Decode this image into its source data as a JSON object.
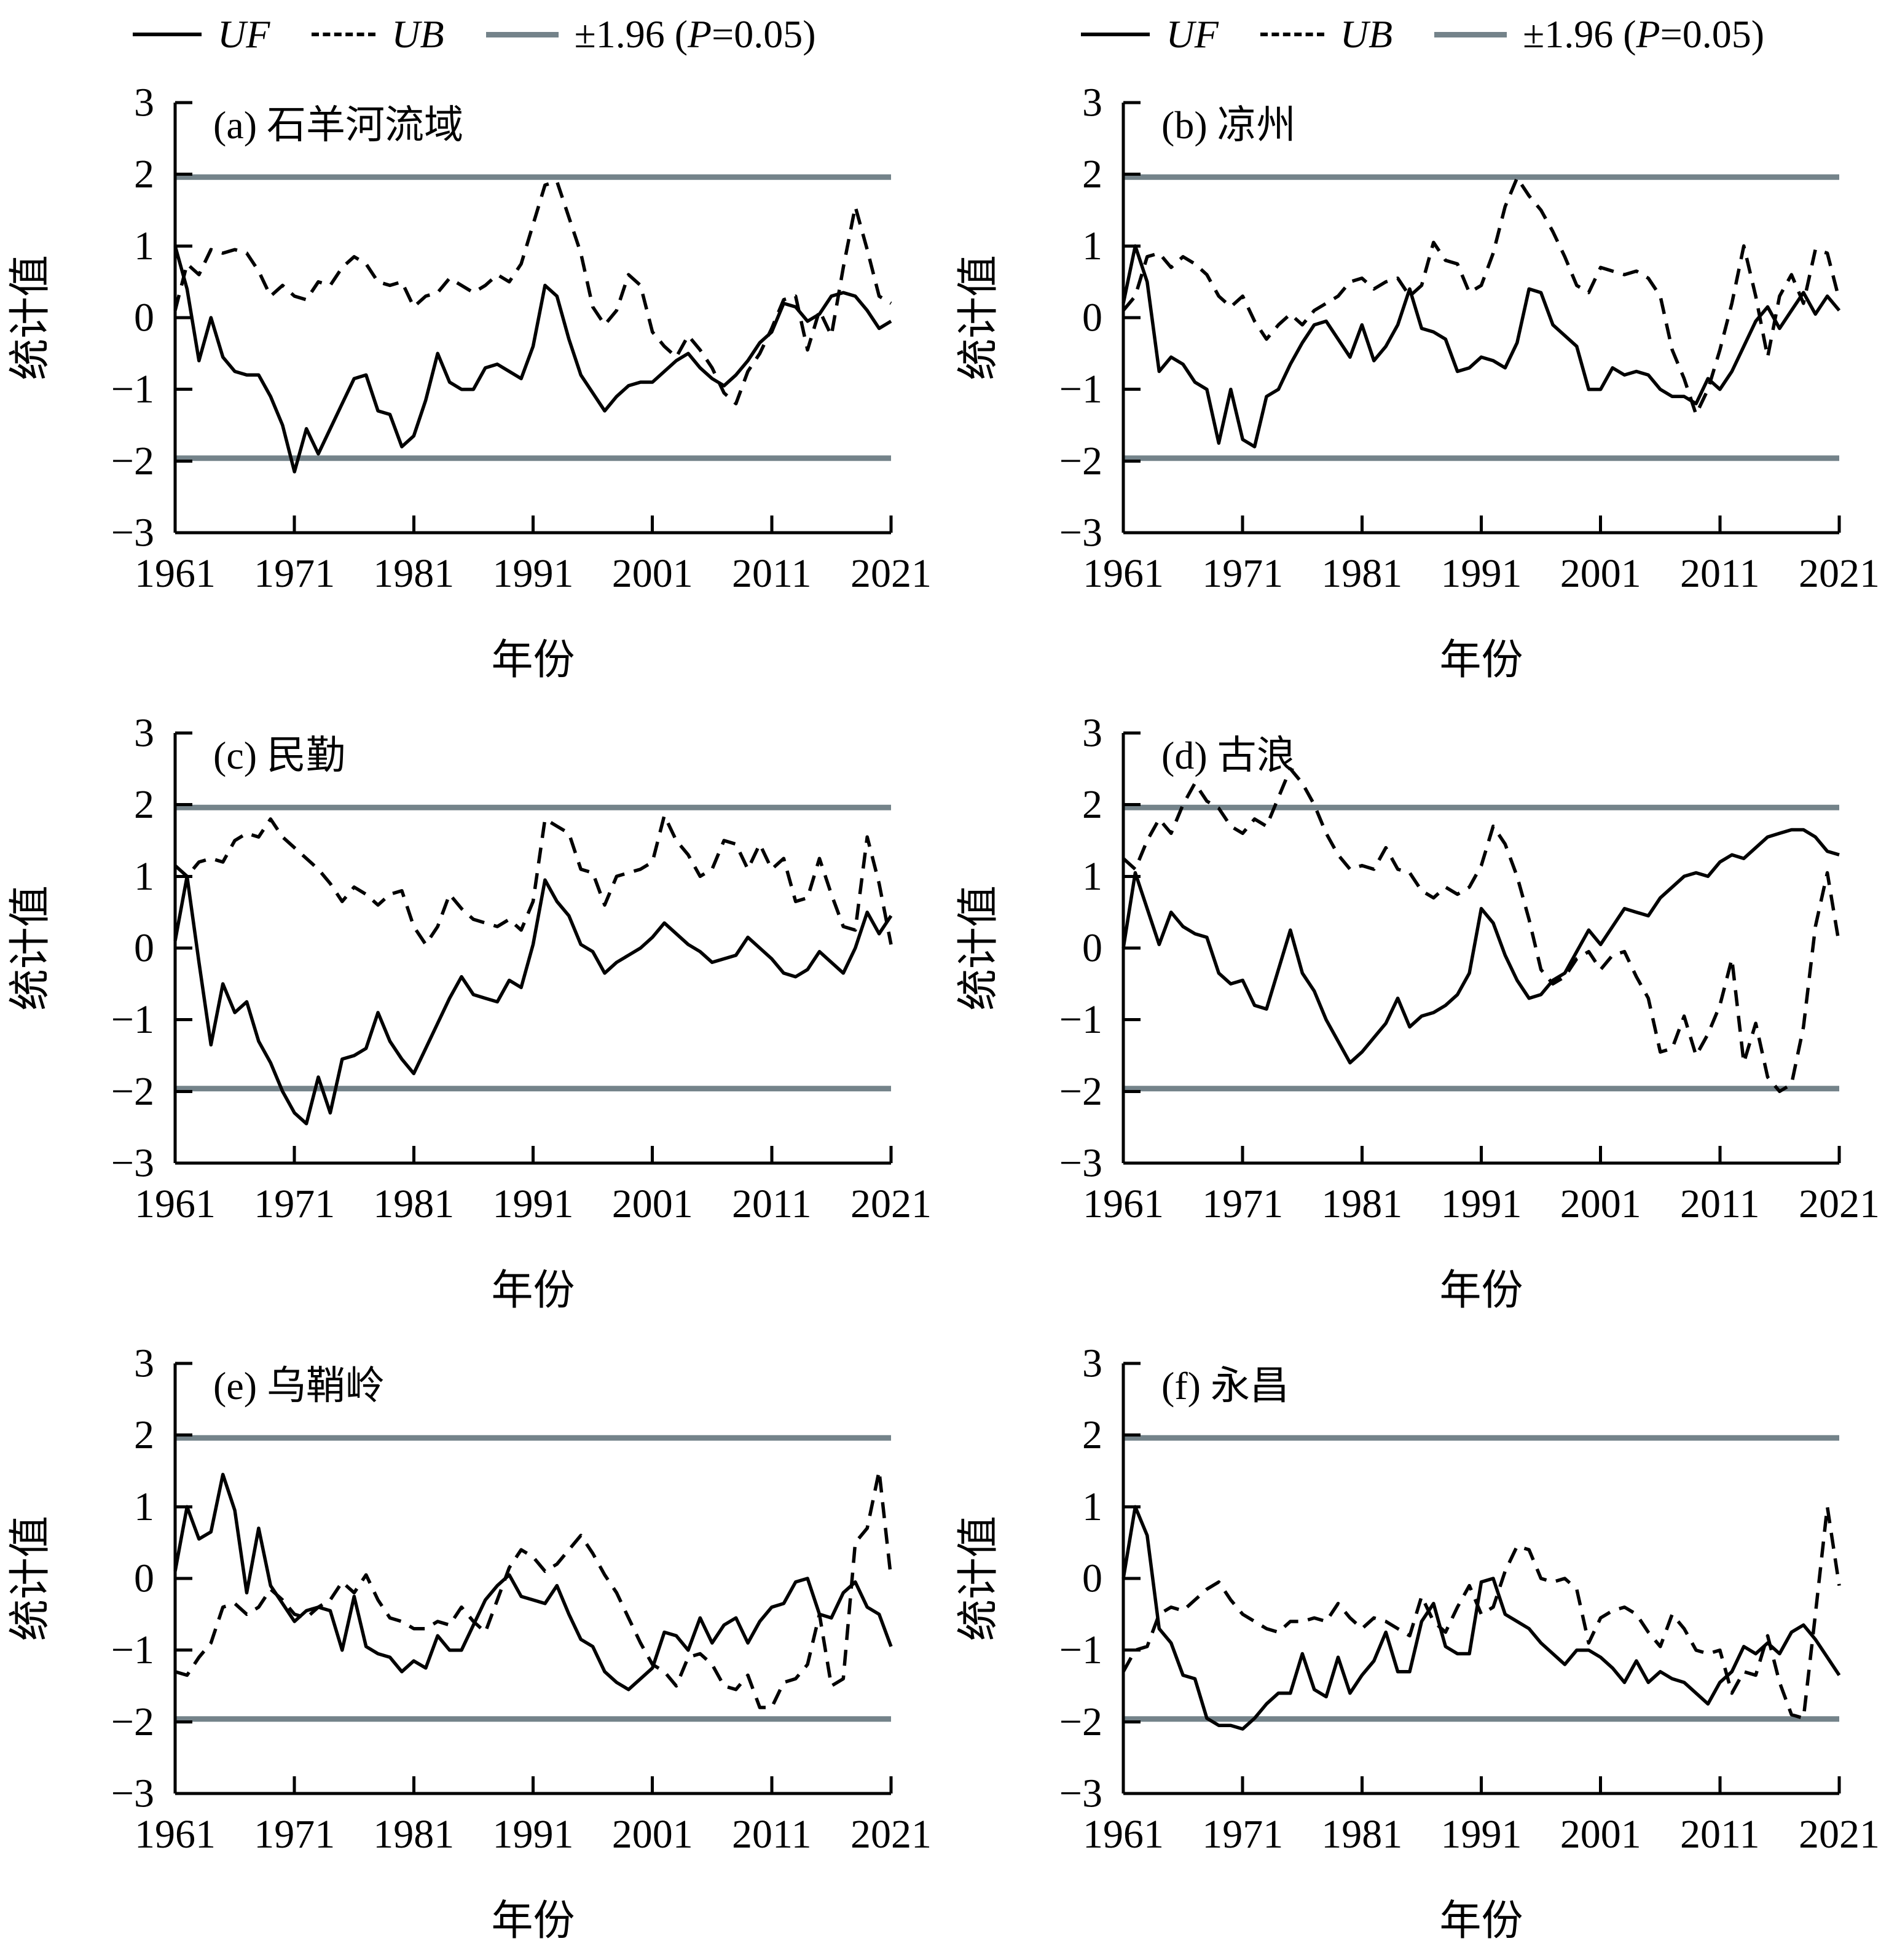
{
  "legend": {
    "uf_label": "UF",
    "ub_label": "UB",
    "threshold_prefix": "±1.96 (",
    "threshold_p": "P",
    "threshold_suffix": "=0.05)"
  },
  "axes": {
    "y_label": "统计值",
    "x_label": "年份",
    "y_ticks": [
      3,
      2,
      1,
      0,
      -1,
      -2,
      -3
    ],
    "x_ticks": [
      1961,
      1971,
      1981,
      1991,
      2001,
      2011,
      2021
    ],
    "ylim": [
      -3,
      3
    ],
    "xlim": [
      1961,
      2021
    ],
    "threshold_value": 1.96,
    "grid": false,
    "legend_position": "top"
  },
  "colors": {
    "uf": "#000000",
    "ub": "#000000",
    "threshold": "#74838a"
  },
  "chart_data": [
    {
      "id": "a",
      "type": "line",
      "title": "(a) 石羊河流域",
      "x_start": 1961,
      "x_end": 2021,
      "series": [
        {
          "name": "UF",
          "style": "solid",
          "values": [
            1.0,
            0.4,
            -0.6,
            0.0,
            -0.55,
            -0.75,
            -0.8,
            -0.8,
            -1.1,
            -1.5,
            -2.15,
            -1.55,
            -1.9,
            -1.55,
            -1.2,
            -0.85,
            -0.8,
            -1.3,
            -1.35,
            -1.8,
            -1.65,
            -1.15,
            -0.5,
            -0.9,
            -1.0,
            -1.0,
            -0.7,
            -0.65,
            -0.75,
            -0.85,
            -0.4,
            0.45,
            0.3,
            -0.3,
            -0.8,
            -1.05,
            -1.3,
            -1.1,
            -0.95,
            -0.9,
            -0.9,
            -0.75,
            -0.6,
            -0.5,
            -0.7,
            -0.85,
            -0.95,
            -0.8,
            -0.6,
            -0.35,
            -0.2,
            0.2,
            0.15,
            -0.05,
            0.05,
            0.3,
            0.35,
            0.3,
            0.1,
            -0.15,
            -0.05
          ]
        },
        {
          "name": "UB",
          "style": "dashed",
          "values": [
            0.1,
            0.75,
            0.6,
            0.95,
            0.9,
            0.95,
            0.9,
            0.65,
            0.3,
            0.45,
            0.3,
            0.25,
            0.5,
            0.45,
            0.7,
            0.85,
            0.75,
            0.5,
            0.45,
            0.5,
            0.15,
            0.3,
            0.35,
            0.55,
            0.45,
            0.35,
            0.45,
            0.6,
            0.5,
            0.75,
            1.3,
            1.85,
            1.9,
            1.4,
            0.9,
            0.15,
            -0.1,
            0.1,
            0.6,
            0.45,
            -0.2,
            -0.4,
            -0.55,
            -0.25,
            -0.45,
            -0.7,
            -1.05,
            -1.2,
            -0.75,
            -0.5,
            -0.15,
            0.25,
            0.3,
            -0.45,
            0.1,
            -0.25,
            0.7,
            1.55,
            0.95,
            0.3,
            0.2
          ]
        }
      ]
    },
    {
      "id": "b",
      "type": "line",
      "title": "(b) 凉州",
      "x_start": 1961,
      "x_end": 2021,
      "series": [
        {
          "name": "UF",
          "style": "solid",
          "values": [
            0.2,
            1.0,
            0.5,
            -0.75,
            -0.55,
            -0.65,
            -0.9,
            -1.0,
            -1.75,
            -1.0,
            -1.7,
            -1.8,
            -1.1,
            -1.0,
            -0.65,
            -0.35,
            -0.1,
            -0.05,
            -0.3,
            -0.55,
            -0.1,
            -0.6,
            -0.4,
            -0.1,
            0.4,
            -0.15,
            -0.2,
            -0.3,
            -0.75,
            -0.7,
            -0.55,
            -0.6,
            -0.7,
            -0.35,
            0.4,
            0.35,
            -0.1,
            -0.25,
            -0.4,
            -1.0,
            -1.0,
            -0.7,
            -0.8,
            -0.75,
            -0.8,
            -1.0,
            -1.1,
            -1.1,
            -1.2,
            -0.85,
            -1.0,
            -0.75,
            -0.4,
            -0.05,
            0.15,
            -0.15,
            0.1,
            0.35,
            0.05,
            0.3,
            0.1
          ]
        },
        {
          "name": "UB",
          "style": "dashed",
          "values": [
            0.1,
            0.3,
            0.85,
            0.9,
            0.7,
            0.85,
            0.75,
            0.6,
            0.3,
            0.15,
            0.3,
            -0.05,
            -0.3,
            -0.1,
            0.05,
            -0.1,
            0.1,
            0.2,
            0.3,
            0.5,
            0.55,
            0.4,
            0.5,
            0.55,
            0.3,
            0.45,
            1.05,
            0.8,
            0.75,
            0.35,
            0.45,
            0.9,
            1.55,
            1.95,
            1.7,
            1.5,
            1.2,
            0.85,
            0.45,
            0.35,
            0.7,
            0.65,
            0.6,
            0.65,
            0.55,
            0.3,
            -0.45,
            -0.85,
            -1.35,
            -1.0,
            -0.45,
            0.2,
            1.0,
            0.3,
            -0.55,
            0.3,
            0.6,
            0.2,
            0.95,
            0.9,
            0.25
          ]
        }
      ]
    },
    {
      "id": "c",
      "type": "line",
      "title": "(c) 民勤",
      "x_start": 1961,
      "x_end": 2021,
      "series": [
        {
          "name": "UF",
          "style": "solid",
          "values": [
            0.1,
            1.0,
            -0.2,
            -1.35,
            -0.5,
            -0.9,
            -0.75,
            -1.3,
            -1.6,
            -2.0,
            -2.3,
            -2.45,
            -1.8,
            -2.3,
            -1.55,
            -1.5,
            -1.4,
            -0.9,
            -1.3,
            -1.55,
            -1.75,
            -1.4,
            -1.05,
            -0.7,
            -0.4,
            -0.65,
            -0.7,
            -0.75,
            -0.45,
            -0.55,
            0.05,
            0.95,
            0.65,
            0.45,
            0.05,
            -0.05,
            -0.35,
            -0.2,
            -0.1,
            0.0,
            0.15,
            0.35,
            0.2,
            0.05,
            -0.05,
            -0.2,
            -0.15,
            -0.1,
            0.15,
            0.0,
            -0.15,
            -0.35,
            -0.4,
            -0.3,
            -0.05,
            -0.2,
            -0.35,
            0.0,
            0.5,
            0.2,
            0.45
          ]
        },
        {
          "name": "UB",
          "style": "dashed",
          "values": [
            1.15,
            1.0,
            1.2,
            1.25,
            1.2,
            1.5,
            1.6,
            1.55,
            1.8,
            1.55,
            1.4,
            1.25,
            1.1,
            0.9,
            0.65,
            0.85,
            0.75,
            0.6,
            0.75,
            0.8,
            0.3,
            0.05,
            0.3,
            0.75,
            0.55,
            0.4,
            0.35,
            0.3,
            0.4,
            0.25,
            0.65,
            1.8,
            1.7,
            1.6,
            1.1,
            1.05,
            0.6,
            1.0,
            1.05,
            1.1,
            1.2,
            1.85,
            1.5,
            1.3,
            1.0,
            1.1,
            1.5,
            1.45,
            1.1,
            1.45,
            1.1,
            1.25,
            0.65,
            0.7,
            1.25,
            0.75,
            0.3,
            0.25,
            1.55,
            0.9,
            0.05
          ]
        }
      ]
    },
    {
      "id": "d",
      "type": "line",
      "title": "(d) 古浪",
      "x_start": 1961,
      "x_end": 2021,
      "series": [
        {
          "name": "UF",
          "style": "solid",
          "values": [
            0.0,
            1.05,
            0.55,
            0.05,
            0.5,
            0.3,
            0.2,
            0.15,
            -0.35,
            -0.5,
            -0.45,
            -0.8,
            -0.85,
            -0.3,
            0.25,
            -0.35,
            -0.6,
            -1.0,
            -1.3,
            -1.6,
            -1.45,
            -1.25,
            -1.05,
            -0.7,
            -1.1,
            -0.95,
            -0.9,
            -0.8,
            -0.65,
            -0.35,
            0.55,
            0.35,
            -0.1,
            -0.45,
            -0.7,
            -0.65,
            -0.45,
            -0.35,
            -0.05,
            0.25,
            0.05,
            0.3,
            0.55,
            0.5,
            0.45,
            0.7,
            0.85,
            1.0,
            1.05,
            1.0,
            1.2,
            1.3,
            1.25,
            1.4,
            1.55,
            1.6,
            1.65,
            1.65,
            1.55,
            1.35,
            1.3
          ]
        },
        {
          "name": "UB",
          "style": "dashed",
          "values": [
            1.25,
            1.1,
            1.5,
            1.8,
            1.6,
            2.0,
            2.3,
            2.05,
            1.95,
            1.7,
            1.6,
            1.8,
            1.7,
            2.1,
            2.5,
            2.3,
            2.0,
            1.6,
            1.3,
            1.1,
            1.15,
            1.1,
            1.4,
            1.1,
            1.05,
            0.8,
            0.7,
            0.85,
            0.75,
            0.85,
            1.15,
            1.7,
            1.45,
            1.0,
            0.4,
            -0.3,
            -0.5,
            -0.4,
            -0.15,
            -0.05,
            -0.3,
            -0.1,
            -0.05,
            -0.4,
            -0.7,
            -1.45,
            -1.4,
            -0.95,
            -1.5,
            -1.2,
            -0.8,
            -0.15,
            -1.6,
            -1.05,
            -1.8,
            -2.0,
            -1.9,
            -1.1,
            0.3,
            1.05,
            0.05
          ]
        }
      ]
    },
    {
      "id": "e",
      "type": "line",
      "title": "(e) 乌鞘岭",
      "x_start": 1961,
      "x_end": 2021,
      "series": [
        {
          "name": "UF",
          "style": "solid",
          "values": [
            0.1,
            1.0,
            0.55,
            0.65,
            1.45,
            0.95,
            -0.2,
            0.7,
            -0.1,
            -0.35,
            -0.6,
            -0.45,
            -0.4,
            -0.45,
            -1.0,
            -0.25,
            -0.95,
            -1.05,
            -1.1,
            -1.3,
            -1.15,
            -1.25,
            -0.8,
            -1.0,
            -1.0,
            -0.65,
            -0.3,
            -0.1,
            0.05,
            -0.25,
            -0.3,
            -0.35,
            -0.1,
            -0.5,
            -0.85,
            -0.95,
            -1.3,
            -1.45,
            -1.55,
            -1.4,
            -1.25,
            -0.75,
            -0.8,
            -1.0,
            -0.55,
            -0.9,
            -0.65,
            -0.55,
            -0.9,
            -0.6,
            -0.4,
            -0.35,
            -0.05,
            0.0,
            -0.5,
            -0.55,
            -0.2,
            -0.05,
            -0.4,
            -0.5,
            -0.95
          ]
        },
        {
          "name": "UB",
          "style": "dashed",
          "values": [
            -1.3,
            -1.35,
            -1.1,
            -0.9,
            -0.4,
            -0.35,
            -0.5,
            -0.4,
            -0.15,
            -0.3,
            -0.5,
            -0.55,
            -0.4,
            -0.3,
            -0.05,
            -0.2,
            0.05,
            -0.3,
            -0.55,
            -0.6,
            -0.7,
            -0.7,
            -0.6,
            -0.65,
            -0.4,
            -0.6,
            -0.75,
            -0.3,
            0.15,
            0.4,
            0.3,
            0.1,
            0.2,
            0.4,
            0.6,
            0.35,
            0.05,
            -0.2,
            -0.55,
            -0.9,
            -1.2,
            -1.3,
            -1.5,
            -1.1,
            -1.05,
            -1.2,
            -1.5,
            -1.55,
            -1.35,
            -1.8,
            -1.8,
            -1.45,
            -1.4,
            -1.2,
            -0.5,
            -1.5,
            -1.4,
            0.5,
            0.7,
            1.5,
            0.0
          ]
        }
      ]
    },
    {
      "id": "f",
      "type": "line",
      "title": "(f) 永昌",
      "x_start": 1961,
      "x_end": 2021,
      "series": [
        {
          "name": "UF",
          "style": "solid",
          "values": [
            0.0,
            1.0,
            0.6,
            -0.7,
            -0.9,
            -1.35,
            -1.4,
            -1.95,
            -2.05,
            -2.05,
            -2.1,
            -1.95,
            -1.75,
            -1.6,
            -1.6,
            -1.05,
            -1.55,
            -1.65,
            -1.1,
            -1.6,
            -1.35,
            -1.15,
            -0.75,
            -1.3,
            -1.3,
            -0.6,
            -0.35,
            -0.95,
            -1.05,
            -1.05,
            -0.05,
            0.0,
            -0.5,
            -0.6,
            -0.7,
            -0.9,
            -1.05,
            -1.2,
            -1.0,
            -1.0,
            -1.1,
            -1.25,
            -1.45,
            -1.15,
            -1.45,
            -1.3,
            -1.4,
            -1.45,
            -1.6,
            -1.75,
            -1.45,
            -1.3,
            -0.95,
            -1.05,
            -0.9,
            -1.05,
            -0.75,
            -0.65,
            -0.85,
            -1.1,
            -1.35
          ]
        },
        {
          "name": "UB",
          "style": "dashed",
          "values": [
            -1.3,
            -1.0,
            -0.95,
            -0.5,
            -0.4,
            -0.45,
            -0.3,
            -0.15,
            -0.05,
            -0.3,
            -0.5,
            -0.6,
            -0.7,
            -0.75,
            -0.6,
            -0.6,
            -0.55,
            -0.6,
            -0.35,
            -0.55,
            -0.7,
            -0.55,
            -0.6,
            -0.7,
            -0.8,
            -0.25,
            -0.6,
            -0.75,
            -0.4,
            -0.1,
            -0.5,
            -0.4,
            0.1,
            0.45,
            0.4,
            0.0,
            -0.05,
            0.0,
            -0.15,
            -0.9,
            -0.55,
            -0.45,
            -0.4,
            -0.5,
            -0.75,
            -0.95,
            -0.5,
            -0.7,
            -1.0,
            -1.05,
            -1.0,
            -1.6,
            -1.3,
            -1.35,
            -0.8,
            -1.45,
            -1.9,
            -1.95,
            -0.5,
            1.0,
            -0.1
          ]
        }
      ]
    }
  ]
}
